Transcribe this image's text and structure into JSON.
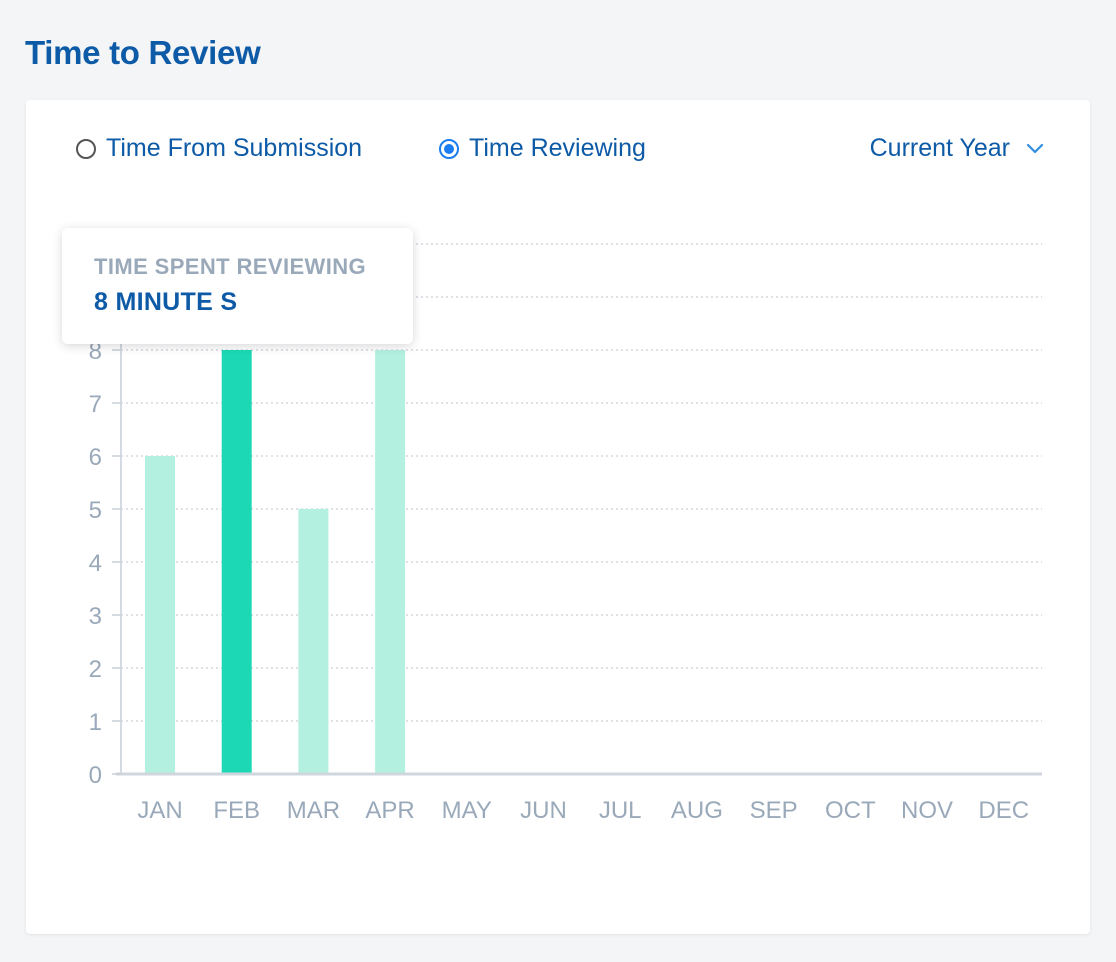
{
  "page": {
    "title": "Time to Review"
  },
  "controls": {
    "radio_options": [
      {
        "label": "Time From Submission",
        "checked": false
      },
      {
        "label": "Time Reviewing",
        "checked": true
      }
    ],
    "period_select": {
      "selected": "Current Year",
      "icon": "chevron-down-icon"
    }
  },
  "tooltip": {
    "title": "TIME SPENT REVIEWING",
    "value": "8 MINUTE S"
  },
  "colors": {
    "title": "#0d5aa7",
    "radio_active": "#1b7df0",
    "bar": "#b3f0e0",
    "bar_highlight": "#1cd8b4",
    "axis_label": "#9aa9b9",
    "gridline": "#c9d0d8"
  },
  "chart_data": {
    "type": "bar",
    "categories": [
      "JAN",
      "FEB",
      "MAR",
      "APR",
      "MAY",
      "JUN",
      "JUL",
      "AUG",
      "SEP",
      "OCT",
      "NOV",
      "DEC"
    ],
    "values": [
      6,
      8,
      5,
      8,
      0,
      0,
      0,
      0,
      0,
      0,
      0,
      0
    ],
    "highlighted_category": "FEB",
    "yticks": [
      0,
      1,
      2,
      3,
      4,
      5,
      6,
      7,
      8
    ],
    "ylim": [
      0,
      10
    ],
    "grid": true,
    "title": "",
    "xlabel": "",
    "ylabel": ""
  }
}
